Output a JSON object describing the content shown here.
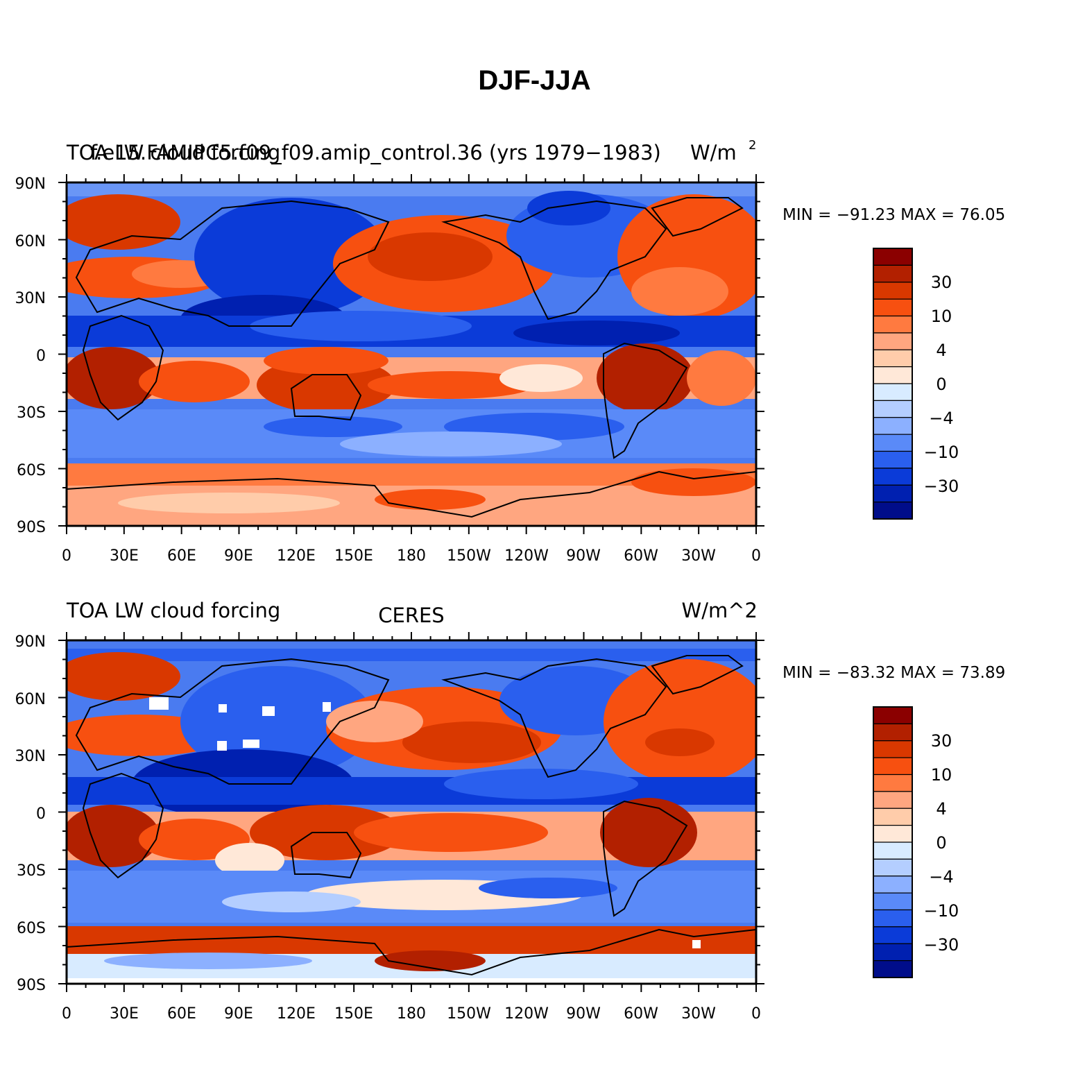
{
  "figure": {
    "title": "DJF-JJA"
  },
  "lat_labels": [
    "90N",
    "60N",
    "30N",
    "0",
    "30S",
    "60S",
    "90S"
  ],
  "lon_labels": [
    "0",
    "30E",
    "60E",
    "90E",
    "120E",
    "150E",
    "180",
    "150W",
    "120W",
    "90W",
    "60W",
    "30W",
    "0"
  ],
  "colorbar": {
    "labels": [
      "30",
      "10",
      "4",
      "0",
      "−4",
      "−10",
      "−30"
    ],
    "colors": [
      "#8b0000",
      "#b22000",
      "#d93800",
      "#f75010",
      "#ff7a40",
      "#ffa680",
      "#ffccaa",
      "#ffe8d8",
      "#d8ebff",
      "#b4ceff",
      "#8cb0ff",
      "#5a8af8",
      "#2a5fee",
      "#0b3bd8",
      "#0020b0",
      "#000d8a"
    ]
  },
  "panels": [
    {
      "left_title": "TOA LW cloud forcing",
      "left_title_overlap": "f.e15.FAMIPC5.f09_f09.amip_control.36 (yrs 1979−1983)",
      "center_title": "",
      "right_title": "W/m",
      "right_title_sup": "2",
      "min_max": "MIN = −91.23  MAX =  76.05"
    },
    {
      "left_title": "TOA LW cloud forcing",
      "left_title_overlap": "",
      "center_title": "CERES",
      "right_title": "W/m^2",
      "right_title_sup": "",
      "min_max": "MIN = −83.32  MAX =  73.89"
    }
  ]
}
